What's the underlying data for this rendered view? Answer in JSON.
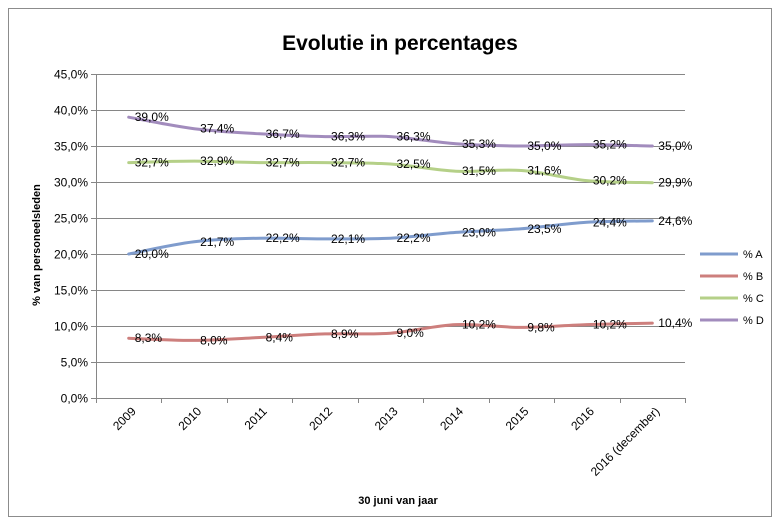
{
  "chart_data": {
    "type": "line",
    "title": "Evolutie in percentages",
    "xlabel": "30 juni van jaar",
    "ylabel": "% van personeelsleden",
    "categories": [
      "2009",
      "2010",
      "2011",
      "2012",
      "2013",
      "2014",
      "2015",
      "2016",
      "2016 (december)"
    ],
    "ylim": [
      0,
      45
    ],
    "y_ticks": [
      0,
      5,
      10,
      15,
      20,
      25,
      30,
      35,
      40,
      45
    ],
    "y_tick_labels": [
      "0,0%",
      "5,0%",
      "10,0%",
      "15,0%",
      "20,0%",
      "25,0%",
      "30,0%",
      "35,0%",
      "40,0%",
      "45,0%"
    ],
    "grid": true,
    "legend_position": "right",
    "series": [
      {
        "name": "% A",
        "color": "#7f9ccd",
        "values": [
          20.0,
          21.7,
          22.2,
          22.1,
          22.2,
          23.0,
          23.5,
          24.4,
          24.6
        ],
        "labels": [
          "20,0%",
          "21,7%",
          "22,2%",
          "22,1%",
          "22,2%",
          "23,0%",
          "23,5%",
          "24,4%",
          "24,6%"
        ]
      },
      {
        "name": "% B",
        "color": "#cd7f7d",
        "values": [
          8.3,
          8.0,
          8.4,
          8.9,
          9.0,
          10.2,
          9.8,
          10.2,
          10.4
        ],
        "labels": [
          "8,3%",
          "8,0%",
          "8,4%",
          "8,9%",
          "9,0%",
          "10,2%",
          "9,8%",
          "10,2%",
          "10,4%"
        ]
      },
      {
        "name": "% C",
        "color": "#b5d088",
        "values": [
          32.7,
          32.9,
          32.7,
          32.7,
          32.5,
          31.5,
          31.6,
          30.2,
          29.9
        ],
        "labels": [
          "32,7%",
          "32,9%",
          "32,7%",
          "32,7%",
          "32,5%",
          "31,5%",
          "31,6%",
          "30,2%",
          "29,9%"
        ]
      },
      {
        "name": "% D",
        "color": "#a28cbd",
        "values": [
          39.0,
          37.4,
          36.7,
          36.3,
          36.3,
          35.3,
          35.0,
          35.2,
          35.0
        ],
        "labels": [
          "39,0%",
          "37,4%",
          "36,7%",
          "36,3%",
          "36,3%",
          "35,3%",
          "35,0%",
          "35,2%",
          "35,0%"
        ]
      }
    ]
  }
}
